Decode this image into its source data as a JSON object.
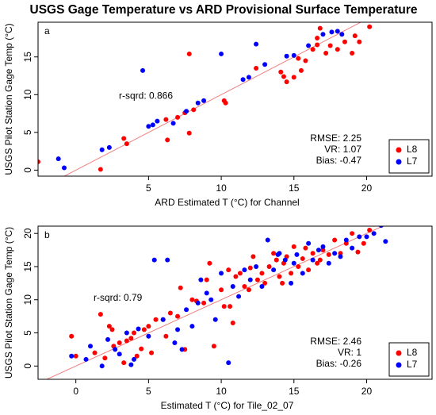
{
  "title": "USGS Gage Temperature vs ARD Provisional Surface Temperature",
  "chart_data": [
    {
      "type": "scatter",
      "panel_label": "a",
      "x_label": "ARD Estimated T (°C) for Channel",
      "y_label": "USGS Pilot Station Gage Temp (°C)",
      "r_sqrd": "r-sqrd: 0.866",
      "stats": [
        "RMSE: 2.25",
        "VR: 1.07",
        "Bias: -0.47"
      ],
      "xlim": [
        -2.6,
        24.5
      ],
      "ylim": [
        -0.8,
        19.6
      ],
      "xticks": [
        5,
        10,
        15,
        20
      ],
      "yticks": [
        0,
        5,
        10,
        15
      ],
      "reference_line": {
        "slope": 1,
        "intercept": 0,
        "color": "#f08080"
      },
      "legend": "bottom-right",
      "series": [
        {
          "name": "L8",
          "color": "#ff0000",
          "x": [
            -2.6,
            1.7,
            3.5,
            3.3,
            6.3,
            7.8,
            6.2,
            7,
            7.5,
            8.1,
            10.2,
            10.3,
            7.8,
            12.4,
            14.1,
            14.3,
            14.5,
            15,
            15.5,
            15.3,
            15.8,
            16.3,
            16.6,
            16.6,
            16.8,
            17.2,
            17.5,
            18,
            18.5,
            19,
            19.2,
            19.5,
            20.2
          ],
          "y": [
            1.1,
            0.1,
            3.5,
            4.2,
            4,
            4.9,
            6.7,
            7,
            7.6,
            8,
            9.2,
            8.9,
            15.4,
            13.5,
            13,
            12.4,
            11.7,
            12.3,
            13.2,
            14.8,
            14.5,
            16,
            16.6,
            17.5,
            18.8,
            15.5,
            16.5,
            16,
            17,
            15.5,
            17.8,
            17,
            19
          ]
        },
        {
          "name": "L7",
          "color": "#0000ff",
          "x": [
            -1.2,
            -0.8,
            1.8,
            2.3,
            5,
            5.3,
            5.6,
            6.7,
            7.6,
            8.4,
            8.8,
            4.6,
            10,
            11.5,
            11.9,
            12.4,
            13,
            14.5,
            15,
            16,
            17,
            17.6,
            18,
            18.3
          ],
          "y": [
            1.5,
            0.3,
            2.7,
            3,
            5.8,
            6,
            6.5,
            6.2,
            7.8,
            8.9,
            9.2,
            13.2,
            15.4,
            12,
            12.3,
            16.7,
            14,
            15.1,
            15.2,
            16.5,
            18,
            18.3,
            18.4,
            18
          ]
        }
      ]
    },
    {
      "type": "scatter",
      "panel_label": "b",
      "x_label": "Estimated T (°C) for Tile_02_07",
      "y_label": "USGS Pilot Station Gage Temp (°C)",
      "r_sqrd": "r-sqrd: 0.79",
      "stats": [
        "RMSE: 2.46",
        "VR: 1",
        "Bias: -0.26"
      ],
      "xlim": [
        -2.6,
        24.5
      ],
      "ylim": [
        -2,
        21.1
      ],
      "xticks": [
        0,
        5,
        10,
        15,
        20
      ],
      "yticks": [
        0,
        5,
        10,
        15,
        20
      ],
      "reference_line": {
        "slope": 1,
        "intercept": 0,
        "color": "#f08080"
      },
      "legend": "bottom-right",
      "series": [
        {
          "name": "L8",
          "color": "#ff0000",
          "x": [
            -0.3,
            0,
            1.3,
            1.7,
            2,
            2.3,
            2.5,
            2.6,
            3,
            3.3,
            3.5,
            3.8,
            4,
            4.2,
            4.5,
            4.7,
            5,
            5.2,
            5.5,
            6,
            6.2,
            6.5,
            7,
            7.2,
            7.5,
            8,
            8.3,
            8.8,
            9,
            9.2,
            9.5,
            10,
            10.2,
            10.5,
            10.8,
            11,
            11.3,
            11.6,
            11.9,
            12.2,
            12.5,
            12.8,
            13,
            13.3,
            13.6,
            14,
            14.3,
            14.5,
            14.8,
            15,
            15.3,
            15.6,
            16,
            16.3,
            16.6,
            17,
            17.4,
            17.8,
            18.2,
            18.6,
            19,
            19.4,
            19.8,
            20.2,
            10.6,
            12,
            14.2,
            15.8,
            16.8,
            13.8
          ],
          "y": [
            4.5,
            1.5,
            2,
            7.8,
            1.2,
            6,
            5.5,
            3,
            3.5,
            0.5,
            3.8,
            4.2,
            5,
            1.5,
            2.6,
            5.5,
            6,
            2,
            7,
            7,
            4.5,
            8,
            7.5,
            11.8,
            2.5,
            10,
            9.8,
            9.5,
            13,
            15.5,
            3,
            11.5,
            9,
            14.5,
            6.5,
            13.5,
            14,
            12,
            11.5,
            16.5,
            13,
            14,
            12.5,
            15,
            17,
            13.5,
            15.5,
            16.5,
            14,
            18,
            15,
            16.2,
            14.5,
            17,
            15.5,
            17.5,
            16.8,
            19,
            17,
            18.5,
            20,
            17.2,
            18.5,
            20.5,
            9,
            14.8,
            12.5,
            17.8,
            16,
            16
          ]
        },
        {
          "name": "L7",
          "color": "#0000ff",
          "x": [
            -0.3,
            0.7,
            1,
            1.8,
            2.2,
            2.7,
            3,
            3.5,
            3.8,
            4,
            4.3,
            5,
            5.4,
            6,
            6.3,
            6.8,
            7,
            7.3,
            7.6,
            8,
            8.4,
            8.6,
            9,
            9.3,
            9.6,
            10,
            10.5,
            10.8,
            11.2,
            11.6,
            12,
            12.4,
            12.8,
            13.2,
            13.6,
            14,
            14.4,
            14.8,
            15.2,
            15.6,
            16,
            16.3,
            16.7,
            17,
            17.4,
            17.8,
            18.2,
            18.6,
            19,
            19.5,
            20,
            20.5,
            21,
            21.3,
            15,
            13.9
          ],
          "y": [
            1.5,
            1,
            3,
            0,
            4,
            2.5,
            1.8,
            5,
            0.2,
            1,
            5.6,
            4.5,
            16,
            7,
            16,
            3.5,
            5.5,
            2.5,
            8.5,
            6,
            9.5,
            13,
            11,
            10,
            7,
            14,
            0.5,
            12,
            10.5,
            14.5,
            13,
            15,
            12,
            19,
            14.5,
            17,
            16,
            12.5,
            16.8,
            14,
            18.5,
            16,
            17.5,
            18,
            15.5,
            17,
            16.5,
            19,
            17.8,
            19.5,
            19.5,
            20,
            21.2,
            18.8,
            15.5,
            16.8
          ]
        }
      ]
    }
  ]
}
